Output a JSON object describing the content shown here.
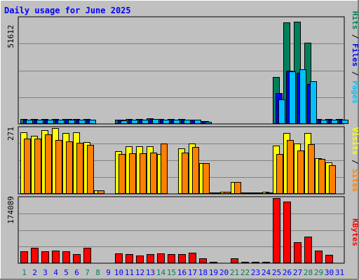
{
  "chart_title": "Daily usage for June 2025",
  "colors": {
    "background": "#c0c0c0",
    "title": "#0000ff",
    "hits": "#00805c",
    "files": "#0000ff",
    "pages": "#00c0ff",
    "visits": "#ffff00",
    "sites": "#ff8000",
    "kbytes": "#ff0000",
    "weekend_day": "#00805c",
    "weekday": "#0000ff"
  },
  "chart_data": [
    {
      "type": "bar",
      "panel": "hits-files-pages",
      "categories": [
        "1",
        "2",
        "3",
        "4",
        "5",
        "6",
        "7",
        "8",
        "9",
        "10",
        "11",
        "12",
        "13",
        "14",
        "15",
        "16",
        "17",
        "18",
        "19",
        "20",
        "21",
        "22",
        "23",
        "24",
        "25",
        "26",
        "27",
        "28",
        "29",
        "30",
        "31"
      ],
      "weekend_days": [
        "1",
        "7",
        "8",
        "14",
        "15",
        "21",
        "22",
        "28",
        "29"
      ],
      "y_max_label": "51612",
      "series": [
        {
          "name": "Hits",
          "values": [
            2300,
            2300,
            2300,
            2300,
            2500,
            2300,
            2300,
            300,
            0,
            2000,
            2300,
            2300,
            2600,
            2300,
            2300,
            2300,
            2200,
            1400,
            300,
            300,
            300,
            300,
            300,
            300,
            23000,
            49500,
            49800,
            39500,
            2300,
            2300,
            2300
          ]
        },
        {
          "name": "Files",
          "values": [
            2200,
            2200,
            2200,
            2200,
            2300,
            2200,
            2200,
            300,
            0,
            1900,
            2200,
            2200,
            2500,
            2200,
            2200,
            2200,
            2100,
            1300,
            300,
            300,
            300,
            300,
            300,
            300,
            15000,
            26000,
            25000,
            19500,
            2200,
            2200,
            2200
          ]
        },
        {
          "name": "Pages",
          "values": [
            2000,
            2000,
            2000,
            2000,
            2100,
            2000,
            2000,
            200,
            0,
            1700,
            2000,
            2000,
            2300,
            2000,
            2000,
            2000,
            1900,
            1100,
            200,
            200,
            200,
            200,
            200,
            200,
            12000,
            25500,
            26500,
            20800,
            2000,
            2000,
            2000
          ]
        }
      ],
      "axis_labels": {
        "pages": "Pages",
        "files": "Files",
        "hits": "Hits"
      }
    },
    {
      "type": "bar",
      "panel": "visits-sites",
      "categories": [
        "1",
        "2",
        "3",
        "4",
        "5",
        "6",
        "7",
        "8",
        "9",
        "10",
        "11",
        "12",
        "13",
        "14",
        "15",
        "16",
        "17",
        "18",
        "19",
        "20",
        "21",
        "22",
        "23",
        "24",
        "25",
        "26",
        "27",
        "28",
        "29",
        "30",
        "31"
      ],
      "y_max_label": "271",
      "series": [
        {
          "name": "Visits",
          "values": [
            255,
            240,
            263,
            271,
            252,
            253,
            213,
            15,
            0,
            175,
            196,
            196,
            196,
            165,
            0,
            187,
            207,
            128,
            6,
            10,
            48,
            6,
            6,
            8,
            200,
            250,
            207,
            252,
            146,
            130,
            0
          ]
        },
        {
          "name": "Sites",
          "values": [
            228,
            228,
            245,
            223,
            215,
            210,
            201,
            14,
            0,
            165,
            167,
            167,
            170,
            207,
            0,
            170,
            192,
            127,
            5,
            8,
            48,
            6,
            6,
            7,
            165,
            222,
            180,
            205,
            145,
            118,
            0
          ]
        }
      ],
      "axis_labels": {
        "sites": "Sites",
        "visits": "Visits"
      }
    },
    {
      "type": "bar",
      "panel": "kbytes",
      "categories": [
        "1",
        "2",
        "3",
        "4",
        "5",
        "6",
        "7",
        "8",
        "9",
        "10",
        "11",
        "12",
        "13",
        "14",
        "15",
        "16",
        "17",
        "18",
        "19",
        "20",
        "21",
        "22",
        "23",
        "24",
        "25",
        "26",
        "27",
        "28",
        "29",
        "30",
        "31"
      ],
      "y_max_label": "174089",
      "series": [
        {
          "name": "KBytes",
          "values": [
            32000,
            42000,
            32000,
            34000,
            31000,
            24000,
            41000,
            1000,
            0,
            27000,
            24000,
            21000,
            25000,
            27000,
            24000,
            24000,
            29000,
            13000,
            3000,
            2000,
            13000,
            3000,
            3000,
            3000,
            174000,
            165000,
            57000,
            71000,
            34000,
            23000,
            0
          ]
        }
      ],
      "axis_labels": {
        "kbytes": "KBytes"
      }
    }
  ]
}
